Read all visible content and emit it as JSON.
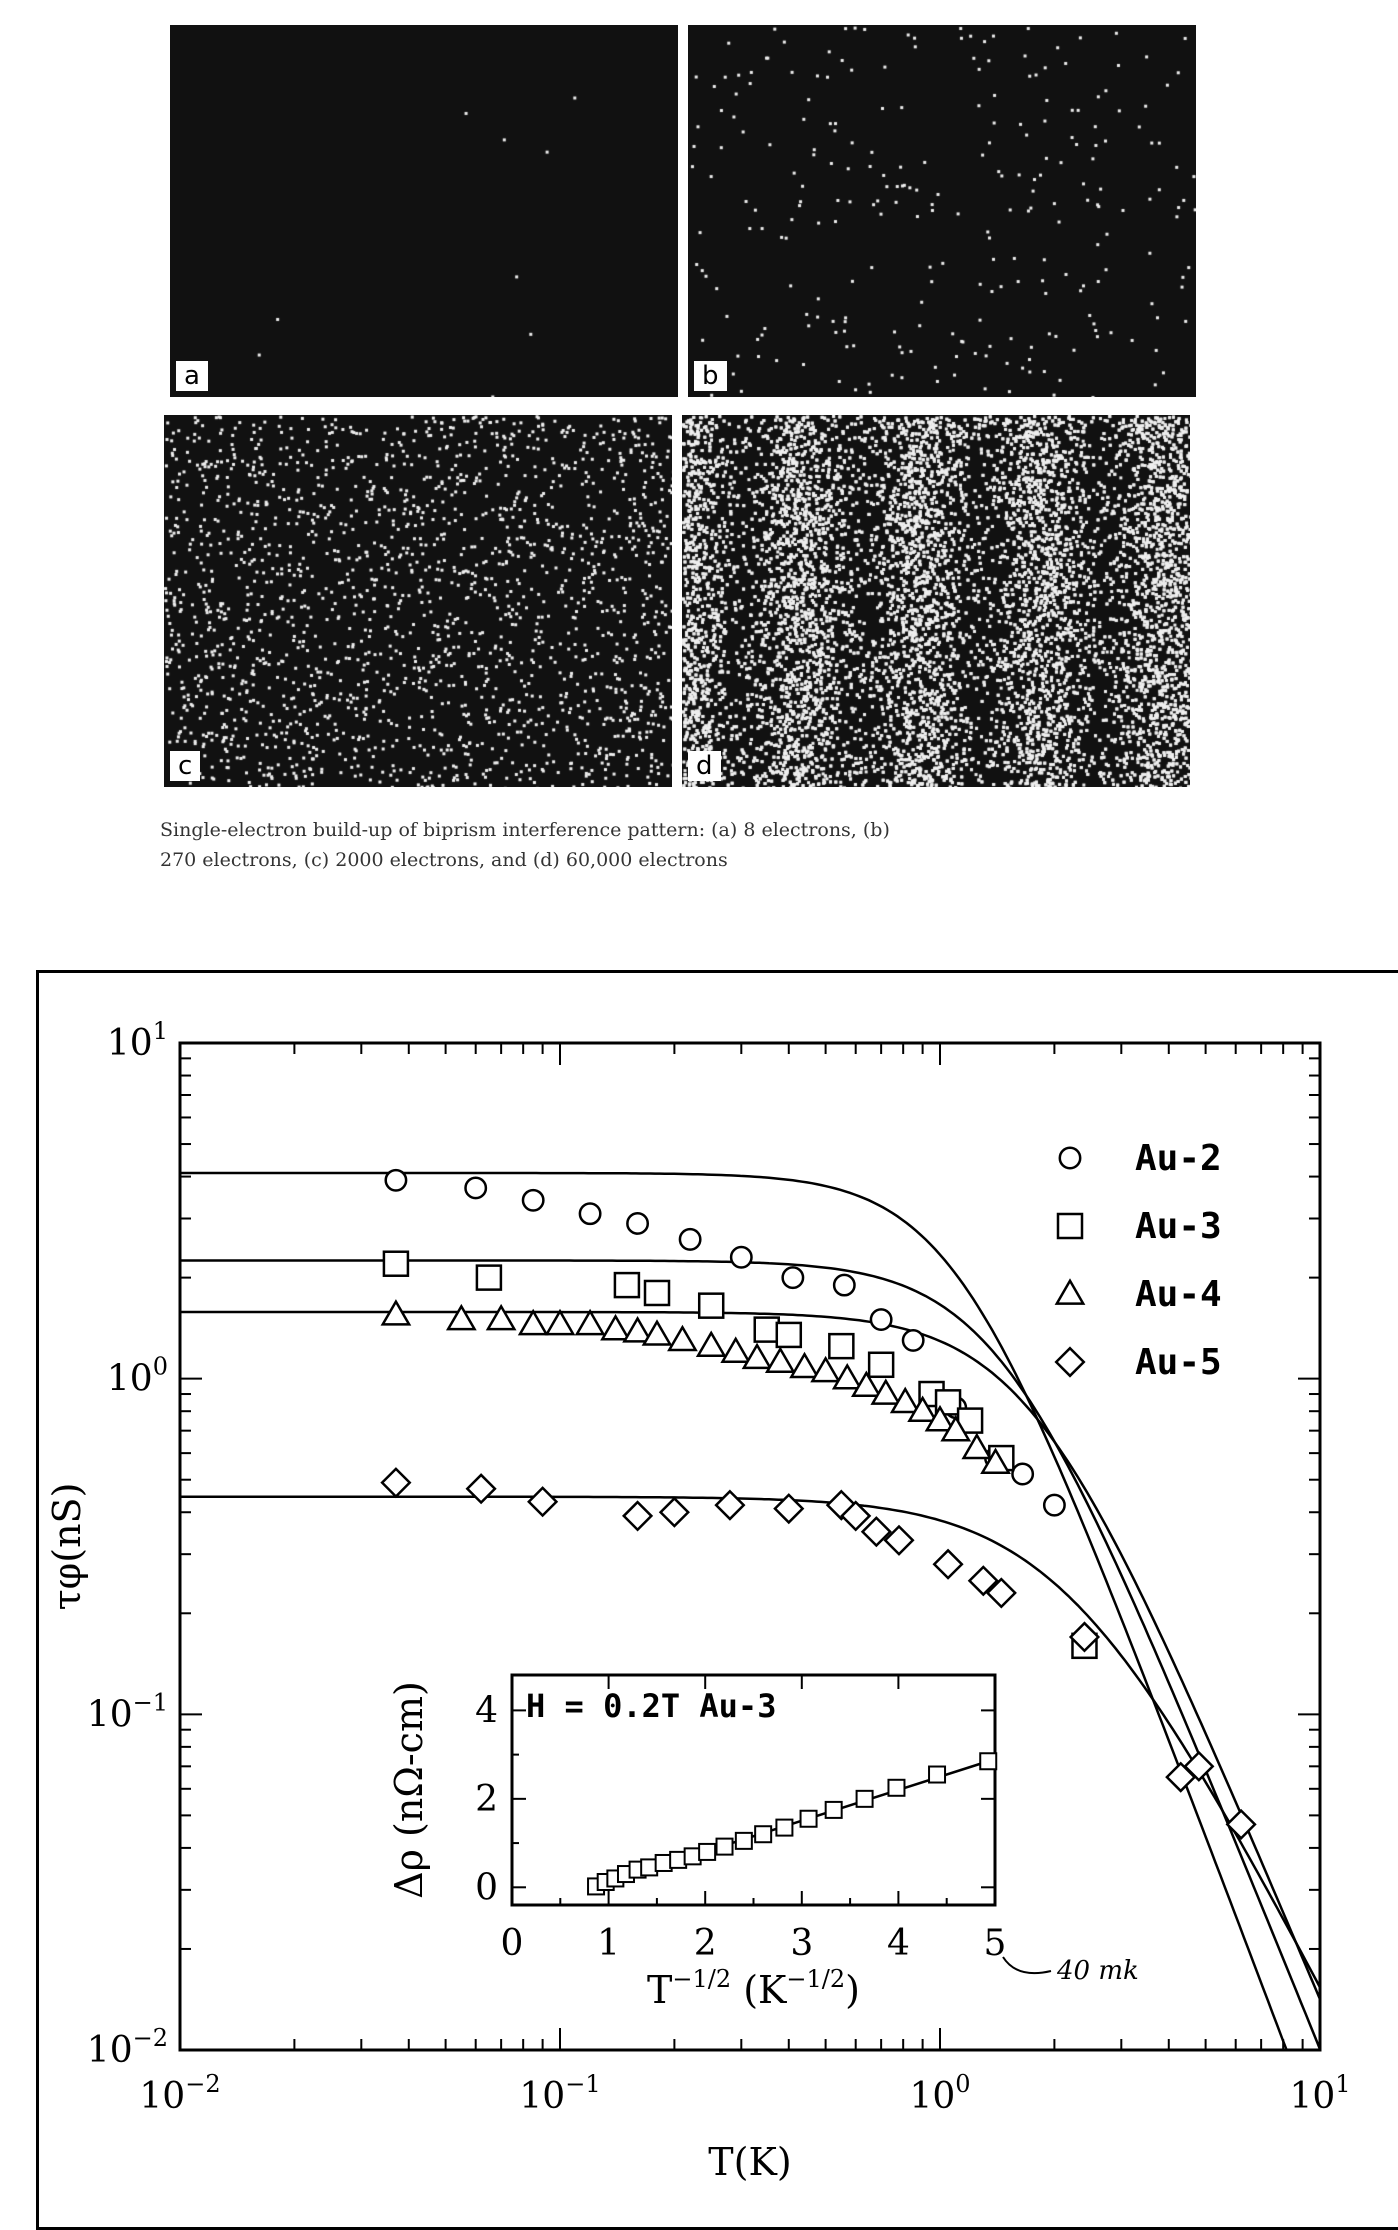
{
  "figure_top": {
    "panels": [
      {
        "label": "a",
        "electrons": 8
      },
      {
        "label": "b",
        "electrons": 270
      },
      {
        "label": "c",
        "electrons": 2000
      },
      {
        "label": "d",
        "electrons": 60000
      }
    ],
    "caption_line1": "Single-electron build-up of biprism interference pattern: (a) 8 electrons, (b)",
    "caption_line2": "270 electrons, (c) 2000 electrons, and (d) 60,000 electrons"
  },
  "chart_data": [
    {
      "type": "scatter",
      "xlabel": "T(K)",
      "ylabel": "τφ(nS)",
      "xscale": "log",
      "yscale": "log",
      "xlim": [
        0.01,
        10
      ],
      "ylim": [
        0.01,
        10
      ],
      "x_tick_labels": [
        "10-2",
        "10-1",
        "100",
        "101"
      ],
      "y_tick_labels": [
        "10-2",
        "10-1",
        "100",
        "101"
      ],
      "legend_placement": "top-right",
      "series": [
        {
          "name": "Au-2",
          "marker": "circle",
          "x": [
            0.037,
            0.06,
            0.085,
            0.12,
            0.16,
            0.22,
            0.3,
            0.41,
            0.56,
            0.7,
            0.85,
            1.1,
            1.4,
            1.65,
            2.0
          ],
          "y": [
            3.9,
            3.7,
            3.4,
            3.1,
            2.9,
            2.6,
            2.3,
            2.0,
            1.9,
            1.5,
            1.3,
            0.82,
            0.58,
            0.52,
            0.42
          ]
        },
        {
          "name": "Au-3",
          "marker": "square",
          "x": [
            0.037,
            0.065,
            0.15,
            0.18,
            0.25,
            0.35,
            0.4,
            0.55,
            0.7,
            0.95,
            1.05,
            1.2,
            1.45,
            2.4
          ],
          "y": [
            2.2,
            2.0,
            1.9,
            1.8,
            1.65,
            1.4,
            1.35,
            1.25,
            1.1,
            0.9,
            0.85,
            0.75,
            0.58,
            0.16
          ]
        },
        {
          "name": "Au-4",
          "marker": "triangle",
          "x": [
            0.037,
            0.055,
            0.07,
            0.085,
            0.1,
            0.12,
            0.14,
            0.16,
            0.18,
            0.21,
            0.25,
            0.29,
            0.33,
            0.38,
            0.44,
            0.5,
            0.57,
            0.64,
            0.72,
            0.81,
            0.9,
            1.0,
            1.1,
            1.25,
            1.4
          ],
          "y": [
            1.55,
            1.5,
            1.5,
            1.45,
            1.45,
            1.45,
            1.4,
            1.38,
            1.35,
            1.3,
            1.25,
            1.2,
            1.15,
            1.12,
            1.08,
            1.05,
            1.0,
            0.95,
            0.9,
            0.85,
            0.8,
            0.75,
            0.7,
            0.62,
            0.56
          ]
        },
        {
          "name": "Au-5",
          "marker": "diamond",
          "x": [
            0.037,
            0.062,
            0.09,
            0.16,
            0.2,
            0.28,
            0.4,
            0.55,
            0.6,
            0.68,
            0.78,
            1.05,
            1.3,
            1.45,
            2.4,
            4.3,
            4.8,
            6.2
          ],
          "y": [
            0.49,
            0.47,
            0.43,
            0.39,
            0.4,
            0.42,
            0.41,
            0.42,
            0.39,
            0.35,
            0.33,
            0.28,
            0.25,
            0.23,
            0.17,
            0.065,
            0.07,
            0.047
          ]
        }
      ],
      "fit_curves": [
        {
          "series": "Au-2",
          "tau0": 4.1,
          "T0": 1.1,
          "p": 3.0
        },
        {
          "series": "Au-3",
          "tau0": 2.25,
          "T0": 1.45,
          "p": 2.8
        },
        {
          "series": "Au-4",
          "tau0": 1.58,
          "T0": 1.75,
          "p": 2.7
        },
        {
          "series": "Au-5",
          "tau0": 0.445,
          "T0": 2.2,
          "p": 2.2
        }
      ]
    },
    {
      "type": "scatter",
      "annotation": "H = 0.2T  Au-3",
      "xlabel": "T-1/2 (K-1/2)",
      "ylabel": "Δρ (nΩ-cm)",
      "xlim": [
        0,
        5
      ],
      "ylim": [
        -0.4,
        4.8
      ],
      "x_tick_labels": [
        "0",
        "1",
        "2",
        "3",
        "4",
        "5"
      ],
      "y_tick_labels": [
        "0",
        "2",
        "4"
      ],
      "x": [
        0.87,
        0.97,
        1.07,
        1.18,
        1.3,
        1.42,
        1.57,
        1.72,
        1.87,
        2.02,
        2.2,
        2.4,
        2.6,
        2.82,
        3.07,
        3.33,
        3.65,
        3.98,
        4.4,
        4.93
      ],
      "y": [
        0.02,
        0.12,
        0.2,
        0.3,
        0.4,
        0.45,
        0.55,
        0.62,
        0.7,
        0.8,
        0.92,
        1.05,
        1.2,
        1.35,
        1.55,
        1.75,
        2.0,
        2.25,
        2.55,
        2.85
      ],
      "fit_line": {
        "x": [
          0.87,
          4.93
        ],
        "y": [
          0.02,
          2.85
        ]
      },
      "handwritten_note": "40 mk"
    }
  ]
}
